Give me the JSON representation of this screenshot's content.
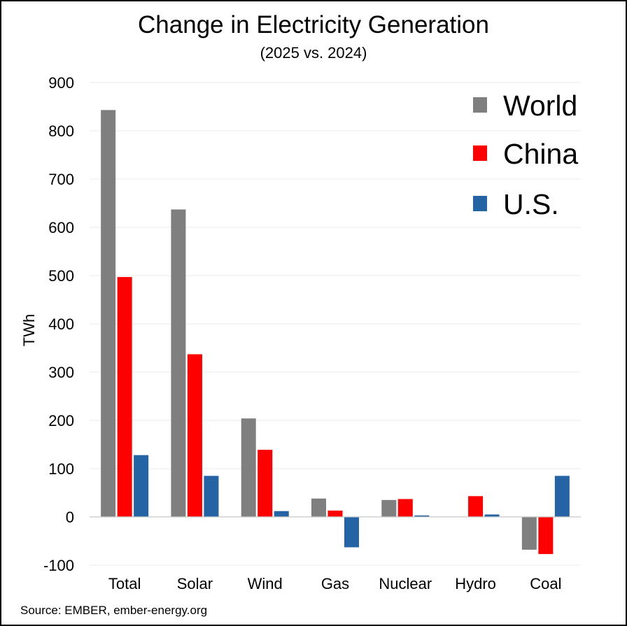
{
  "chart_data": {
    "type": "bar",
    "title": "Change in Electricity Generation",
    "subtitle": "(2025 vs. 2024)",
    "xlabel": "",
    "ylabel": "TWh",
    "ylim": [
      -100,
      900
    ],
    "yticks": [
      900,
      800,
      700,
      600,
      500,
      400,
      300,
      200,
      100,
      0,
      -100
    ],
    "grid": true,
    "legend_position": "top-right",
    "categories": [
      "Total",
      "Solar",
      "Wind",
      "Gas",
      "Nuclear",
      "Hydro",
      "Coal"
    ],
    "series": [
      {
        "name": "World",
        "color": "#7f7f7f",
        "values": [
          843,
          637,
          204,
          38,
          35,
          0,
          -68
        ]
      },
      {
        "name": "China",
        "color": "#ff0000",
        "values": [
          497,
          337,
          139,
          13,
          37,
          43,
          -77
        ]
      },
      {
        "name": "U.S.",
        "color": "#2463a4",
        "values": [
          128,
          85,
          12,
          -63,
          3,
          5,
          85
        ]
      }
    ]
  },
  "source": "Source: EMBER, ember-energy.org"
}
